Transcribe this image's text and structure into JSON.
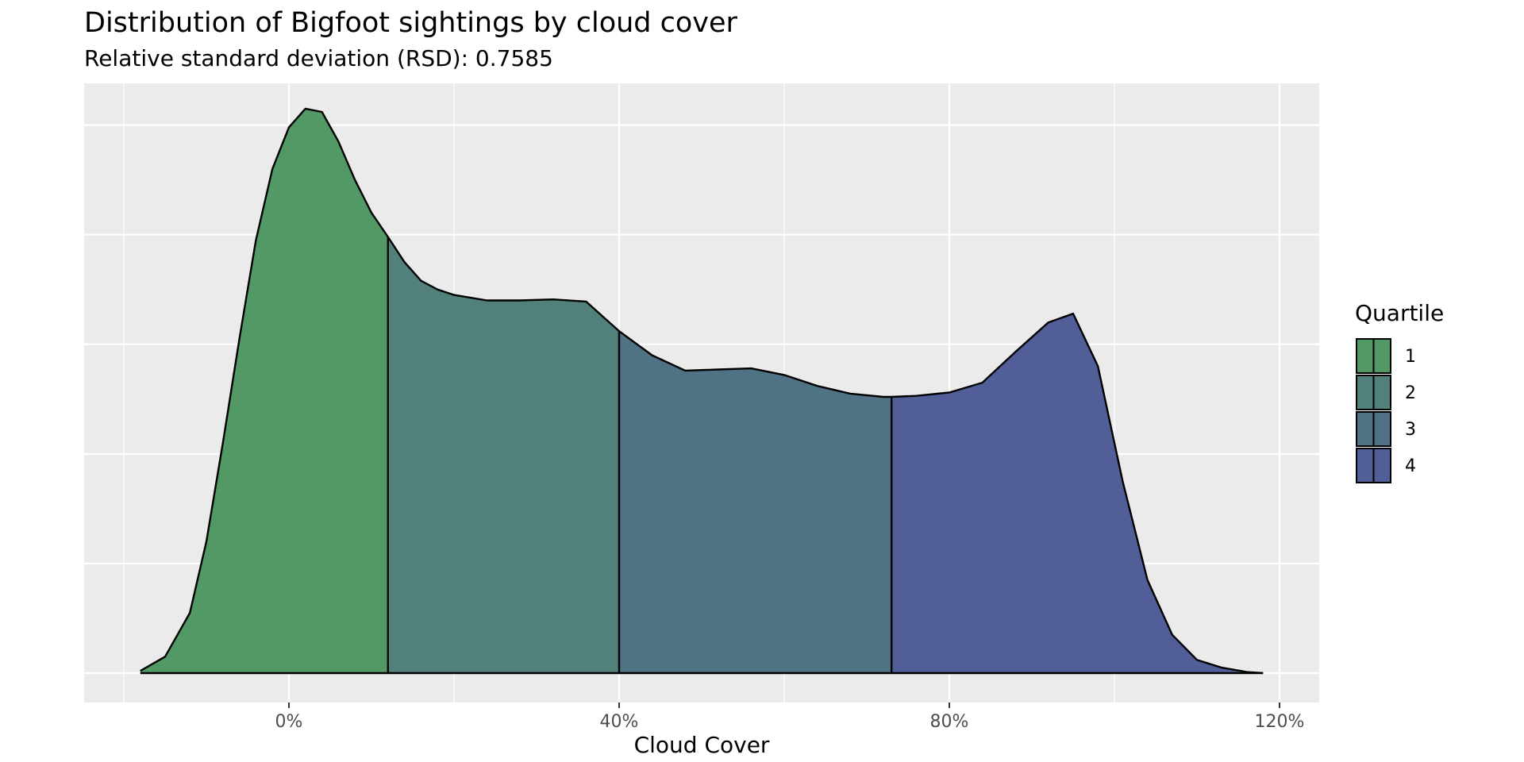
{
  "chart_data": {
    "type": "area",
    "subtype": "density-ridge-with-quartile-fill",
    "title": "Distribution of Bigfoot sightings by cloud cover",
    "subtitle": "Relative standard deviation (RSD): 0.7585",
    "xlabel": "Cloud Cover",
    "ylabel": "",
    "xlim": [
      -20,
      125
    ],
    "ylim": [
      0,
      5.2
    ],
    "x_ticks": [
      0,
      40,
      80,
      120
    ],
    "x_tick_labels": [
      "0%",
      "40%",
      "80%",
      "120%"
    ],
    "y_tick_labels_shown": false,
    "grid": true,
    "legend": {
      "title": "Quartile",
      "position": "right",
      "entries": [
        "1",
        "2",
        "3",
        "4"
      ]
    },
    "quartile_breaks": [
      12,
      40,
      73
    ],
    "colors": {
      "panel_background": "#ebebeb",
      "grid_major": "#ffffff",
      "grid_minor": "#f5f5f5",
      "outline": "#000000",
      "quartile_fills": [
        "#529966",
        "#51817a",
        "#4f7285",
        "#515e98"
      ]
    },
    "density_curve": {
      "x": [
        -18,
        -15,
        -12,
        -10,
        -8,
        -6,
        -4,
        -2,
        0,
        2,
        4,
        6,
        8,
        10,
        12,
        14,
        16,
        18,
        20,
        24,
        28,
        32,
        36,
        40,
        44,
        48,
        52,
        56,
        60,
        64,
        68,
        72,
        73,
        76,
        80,
        84,
        88,
        92,
        95,
        98,
        101,
        104,
        107,
        110,
        113,
        116,
        118
      ],
      "y": [
        0.02,
        0.15,
        0.55,
        1.2,
        2.1,
        3.05,
        3.95,
        4.6,
        4.98,
        5.15,
        5.12,
        4.85,
        4.5,
        4.2,
        3.98,
        3.75,
        3.58,
        3.5,
        3.45,
        3.4,
        3.4,
        3.41,
        3.39,
        3.12,
        2.9,
        2.76,
        2.77,
        2.78,
        2.72,
        2.62,
        2.55,
        2.52,
        2.52,
        2.53,
        2.56,
        2.65,
        2.93,
        3.2,
        3.28,
        2.8,
        1.75,
        0.85,
        0.35,
        0.12,
        0.05,
        0.01,
        0.0
      ]
    }
  }
}
